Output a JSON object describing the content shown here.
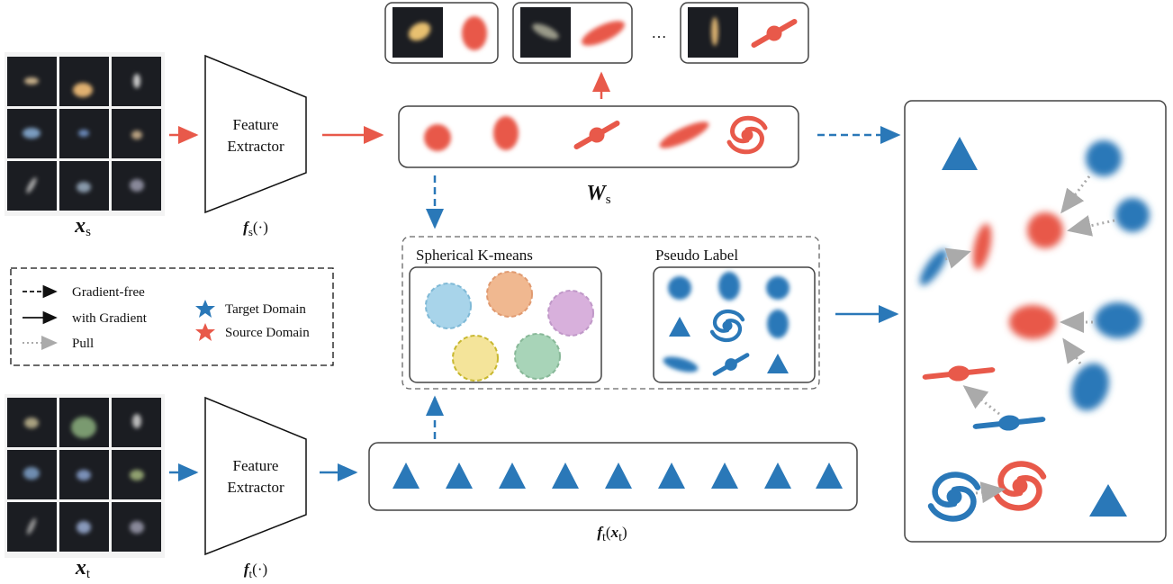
{
  "source_input": {
    "symbol": "x",
    "subscript": "s"
  },
  "target_input": {
    "symbol": "x",
    "subscript": "t"
  },
  "source_extractor": {
    "line1": "Feature",
    "line2": "Extractor",
    "name": "f",
    "subscript": "s",
    "argument": "(·)"
  },
  "target_extractor": {
    "line1": "Feature",
    "line2": "Extractor",
    "name": "f",
    "subscript": "t",
    "argument": "(·)"
  },
  "source_weights": {
    "symbol": "W",
    "subscript": "s"
  },
  "target_features": {
    "name": "f",
    "subscript": "t",
    "open": "(",
    "symbol": "x",
    "argsub": "t",
    "close": ")"
  },
  "ellipsis": "…",
  "clustering": {
    "title": "Spherical K-means"
  },
  "pseudo_label": {
    "title": "Pseudo Label"
  },
  "legend": {
    "items": [
      "Gradient-free",
      "with Gradient",
      "Pull",
      "Target Domain",
      "Source Domain"
    ]
  }
}
